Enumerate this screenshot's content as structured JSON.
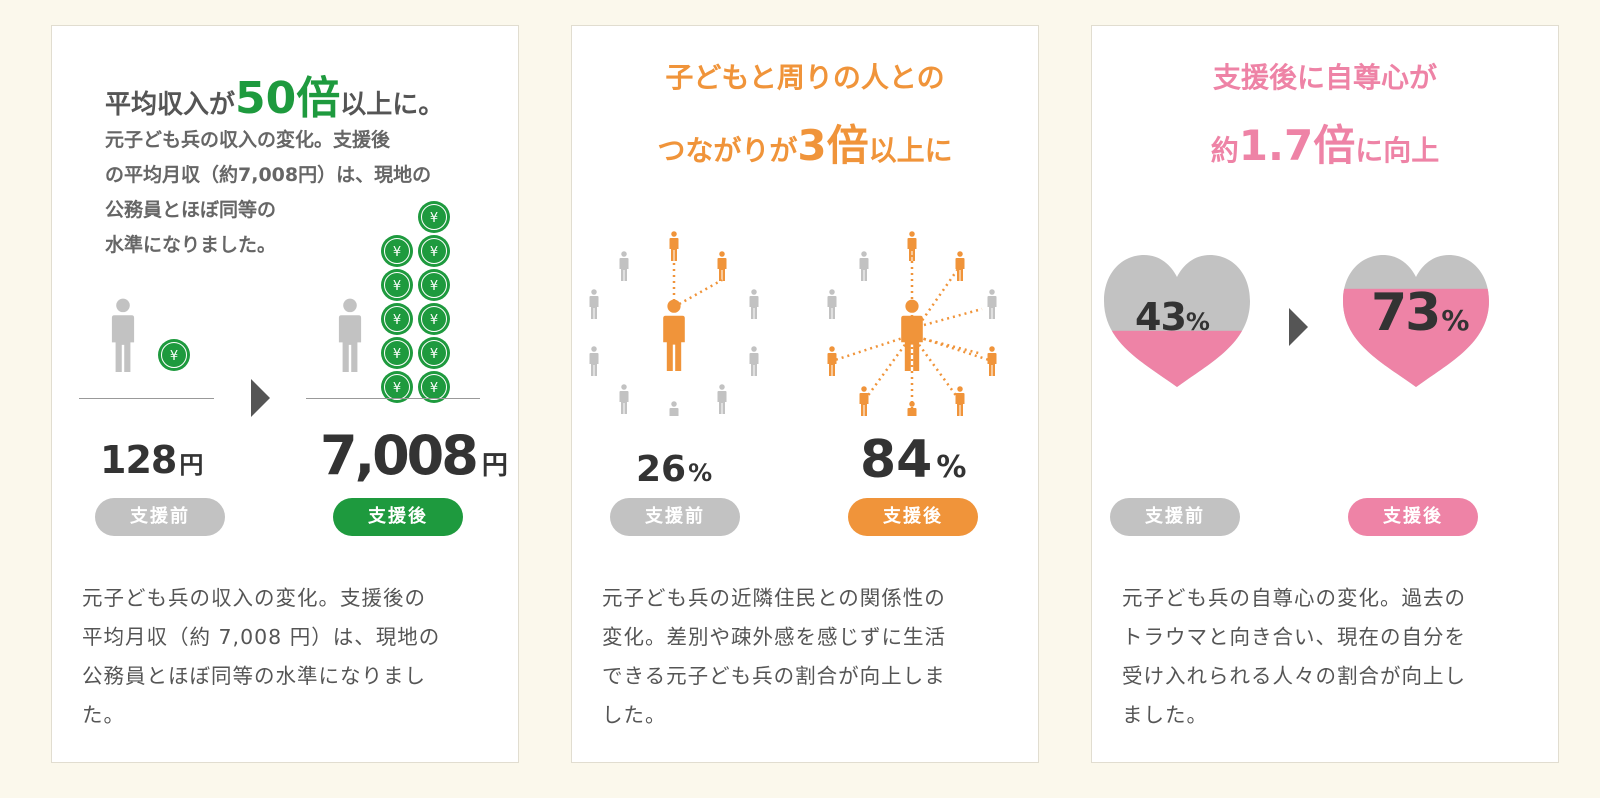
{
  "colors": {
    "green": "#1e9a3e",
    "orange": "#f0943a",
    "pink": "#ee83a6",
    "gray": "#c2c2c2"
  },
  "cards": [
    {
      "headline_pre": "平均収入が",
      "headline_num": "50倍",
      "headline_post": "以上に。",
      "subtitle_lines": [
        "元子ども兵の収入の変化。支援後",
        "の平均月収（約7,008円）は、現地の",
        "公務員とほぼ同等の",
        "水準になりました。"
      ],
      "before_value": "128",
      "after_value": "7,008",
      "unit": "円",
      "coin_symbol": "¥",
      "before_label": "支援前",
      "after_label": "支援後",
      "desc_lines": [
        "元子ども兵の収入の変化。支援後の",
        "平均月収（約 7,008 円）は、現地の",
        "公務員とほぼ同等の水準になりまし",
        "た。"
      ]
    },
    {
      "headline_line1": "子どもと周りの人との",
      "headline_line2_pre": "つながりが",
      "headline_line2_num": "3倍",
      "headline_line2_post": "以上に",
      "before_value": "26",
      "after_value": "84",
      "unit": "%",
      "before_label": "支援前",
      "after_label": "支援後",
      "desc_lines": [
        "元子ども兵の近隣住民との関係性の",
        "変化。差別や疎外感を感じずに生活",
        "できる元子ども兵の割合が向上しま",
        "した。"
      ]
    },
    {
      "headline_line1": "支援後に自尊心が",
      "headline_line2_pre": "約",
      "headline_line2_num": "1.7倍",
      "headline_line2_post": "に向上",
      "before_value": "43",
      "after_value": "73",
      "before_fraction": 0.43,
      "after_fraction": 0.73,
      "unit": "%",
      "before_label": "支援前",
      "after_label": "支援後",
      "desc_lines": [
        "元子ども兵の自尊心の変化。過去の",
        "トラウマと向き合い、現在の自分を",
        "受け入れられる人々の割合が向上し",
        "ました。"
      ]
    }
  ]
}
